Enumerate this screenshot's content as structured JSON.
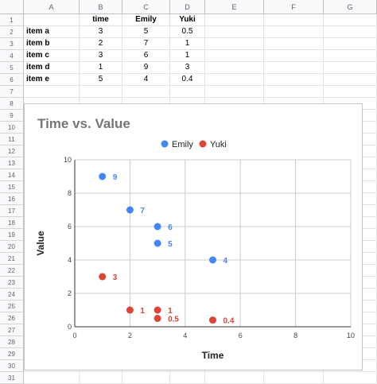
{
  "columns": [
    "A",
    "B",
    "C",
    "D",
    "E",
    "F",
    "G"
  ],
  "rows": [
    "1",
    "2",
    "3",
    "4",
    "5",
    "6",
    "7",
    "8",
    "9",
    "10",
    "11",
    "12",
    "13",
    "14",
    "15",
    "16",
    "17",
    "18",
    "19",
    "20",
    "21",
    "22",
    "23",
    "24",
    "25",
    "26",
    "27",
    "28",
    "29",
    "30",
    "31"
  ],
  "table": {
    "header": [
      "",
      "time",
      "Emily",
      "Yuki"
    ],
    "rows": [
      [
        "item a",
        "3",
        "5",
        "0.5"
      ],
      [
        "item b",
        "2",
        "7",
        "1"
      ],
      [
        "item c",
        "3",
        "6",
        "1"
      ],
      [
        "item d",
        "1",
        "9",
        "3"
      ],
      [
        "item e",
        "5",
        "4",
        "0.4"
      ]
    ]
  },
  "colors": {
    "emily": "#4285f4",
    "yuki": "#db4437",
    "title": "#757575",
    "label_text": "#222222"
  },
  "chart_data": {
    "type": "scatter",
    "title": "Time vs. Value",
    "xlabel": "Time",
    "ylabel": "Value",
    "xlim": [
      0,
      10
    ],
    "ylim": [
      0,
      10
    ],
    "xticks": [
      "0",
      "2",
      "4",
      "6",
      "8",
      "10"
    ],
    "yticks": [
      "0",
      "2",
      "4",
      "6",
      "8",
      "10"
    ],
    "grid": true,
    "legend": "top",
    "series": [
      {
        "name": "Emily",
        "x": [
          3,
          2,
          3,
          1,
          5
        ],
        "y": [
          5,
          7,
          6,
          9,
          4
        ],
        "labels": [
          "5",
          "7",
          "6",
          "9",
          "4"
        ]
      },
      {
        "name": "Yuki",
        "x": [
          3,
          2,
          3,
          1,
          5
        ],
        "y": [
          0.5,
          1,
          1,
          3,
          0.4
        ],
        "labels": [
          "0.5",
          "1",
          "1",
          "3",
          "0.4"
        ]
      }
    ]
  }
}
